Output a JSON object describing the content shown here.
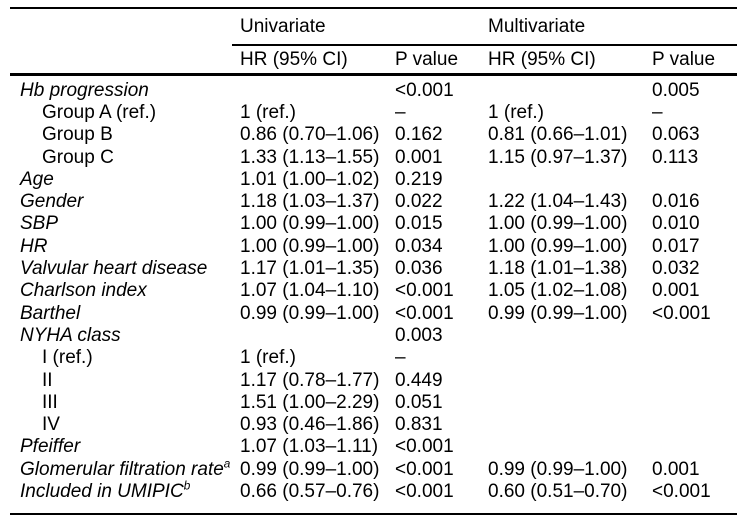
{
  "table": {
    "group_headers": [
      "Univariate",
      "Multivariate"
    ],
    "column_headers": [
      "HR (95% CI)",
      "P value",
      "HR (95% CI)",
      "P value"
    ],
    "rows": [
      {
        "label": "Hb progression",
        "sup": "",
        "indent": false,
        "italic": true,
        "uni_hr": "",
        "uni_p": "<0.001",
        "multi_hr": "",
        "multi_p": "0.005"
      },
      {
        "label": "Group A (ref.)",
        "sup": "",
        "indent": true,
        "italic": false,
        "uni_hr": "1 (ref.)",
        "uni_p": "–",
        "multi_hr": "1 (ref.)",
        "multi_p": "–"
      },
      {
        "label": "Group B",
        "sup": "",
        "indent": true,
        "italic": false,
        "uni_hr": "0.86 (0.70–1.06)",
        "uni_p": "0.162",
        "multi_hr": "0.81 (0.66–1.01)",
        "multi_p": "0.063"
      },
      {
        "label": "Group C",
        "sup": "",
        "indent": true,
        "italic": false,
        "uni_hr": "1.33 (1.13–1.55)",
        "uni_p": "0.001",
        "multi_hr": "1.15 (0.97–1.37)",
        "multi_p": "0.113"
      },
      {
        "label": "Age",
        "sup": "",
        "indent": false,
        "italic": true,
        "uni_hr": "1.01 (1.00–1.02)",
        "uni_p": "0.219",
        "multi_hr": "",
        "multi_p": ""
      },
      {
        "label": "Gender",
        "sup": "",
        "indent": false,
        "italic": true,
        "uni_hr": "1.18 (1.03–1.37)",
        "uni_p": "0.022",
        "multi_hr": "1.22 (1.04–1.43)",
        "multi_p": "0.016"
      },
      {
        "label": "SBP",
        "sup": "",
        "indent": false,
        "italic": true,
        "uni_hr": "1.00 (0.99–1.00)",
        "uni_p": "0.015",
        "multi_hr": "1.00 (0.99–1.00)",
        "multi_p": "0.010"
      },
      {
        "label": "HR",
        "sup": "",
        "indent": false,
        "italic": true,
        "uni_hr": "1.00 (0.99–1.00)",
        "uni_p": "0.034",
        "multi_hr": "1.00 (0.99–1.00)",
        "multi_p": "0.017"
      },
      {
        "label": "Valvular heart disease",
        "sup": "",
        "indent": false,
        "italic": true,
        "uni_hr": "1.17 (1.01–1.35)",
        "uni_p": "0.036",
        "multi_hr": "1.18 (1.01–1.38)",
        "multi_p": "0.032"
      },
      {
        "label": "Charlson index",
        "sup": "",
        "indent": false,
        "italic": true,
        "uni_hr": "1.07 (1.04–1.10)",
        "uni_p": "<0.001",
        "multi_hr": "1.05 (1.02–1.08)",
        "multi_p": "0.001"
      },
      {
        "label": "Barthel",
        "sup": "",
        "indent": false,
        "italic": true,
        "uni_hr": "0.99 (0.99–1.00)",
        "uni_p": "<0.001",
        "multi_hr": "0.99 (0.99–1.00)",
        "multi_p": "<0.001"
      },
      {
        "label": "NYHA class",
        "sup": "",
        "indent": false,
        "italic": true,
        "uni_hr": "",
        "uni_p": "0.003",
        "multi_hr": "",
        "multi_p": ""
      },
      {
        "label": "I (ref.)",
        "sup": "",
        "indent": true,
        "italic": false,
        "uni_hr": "1 (ref.)",
        "uni_p": "–",
        "multi_hr": "",
        "multi_p": ""
      },
      {
        "label": "II",
        "sup": "",
        "indent": true,
        "italic": false,
        "uni_hr": "1.17 (0.78–1.77)",
        "uni_p": "0.449",
        "multi_hr": "",
        "multi_p": ""
      },
      {
        "label": "III",
        "sup": "",
        "indent": true,
        "italic": false,
        "uni_hr": "1.51 (1.00–2.29)",
        "uni_p": "0.051",
        "multi_hr": "",
        "multi_p": ""
      },
      {
        "label": "IV",
        "sup": "",
        "indent": true,
        "italic": false,
        "uni_hr": "0.93 (0.46–1.86)",
        "uni_p": "0.831",
        "multi_hr": "",
        "multi_p": ""
      },
      {
        "label": "Pfeiffer",
        "sup": "",
        "indent": false,
        "italic": true,
        "uni_hr": "1.07 (1.03–1.11)",
        "uni_p": "<0.001",
        "multi_hr": "",
        "multi_p": ""
      },
      {
        "label": "Glomerular filtration rate",
        "sup": "a",
        "indent": false,
        "italic": true,
        "uni_hr": "0.99 (0.99–1.00)",
        "uni_p": "<0.001",
        "multi_hr": "0.99 (0.99–1.00)",
        "multi_p": "0.001"
      },
      {
        "label": "Included in UMIPIC",
        "sup": "b",
        "indent": false,
        "italic": true,
        "uni_hr": "0.66 (0.57–0.76)",
        "uni_p": "<0.001",
        "multi_hr": "0.60 (0.51–0.70)",
        "multi_p": "<0.001"
      }
    ]
  }
}
